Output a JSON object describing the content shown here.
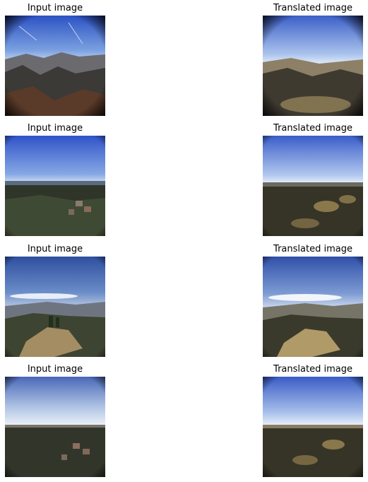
{
  "grid": {
    "rows": [
      {
        "input": {
          "title": "Input image",
          "scene": "mountain-valley-fisheye-photo"
        },
        "output": {
          "title": "Translated image",
          "scene": "mountain-valley-fisheye-translated"
        }
      },
      {
        "input": {
          "title": "Input image",
          "scene": "forest-horizon-blue-sky-photo"
        },
        "output": {
          "title": "Translated image",
          "scene": "forest-horizon-blue-sky-translated"
        }
      },
      {
        "input": {
          "title": "Input image",
          "scene": "hilltop-clearing-clouds-photo"
        },
        "output": {
          "title": "Translated image",
          "scene": "hilltop-clearing-clouds-translated"
        }
      },
      {
        "input": {
          "title": "Input image",
          "scene": "hazy-horizon-forest-photo"
        },
        "output": {
          "title": "Translated image",
          "scene": "hazy-horizon-forest-translated"
        }
      }
    ]
  },
  "colors": {
    "sky_top": "#3f63c7",
    "sky_horizon": "#dfe8f5",
    "ground_dark": "#2d2a22",
    "vegetation": "#3b4530",
    "dirt": "#a48d62",
    "vignette": "#1a1a14"
  }
}
